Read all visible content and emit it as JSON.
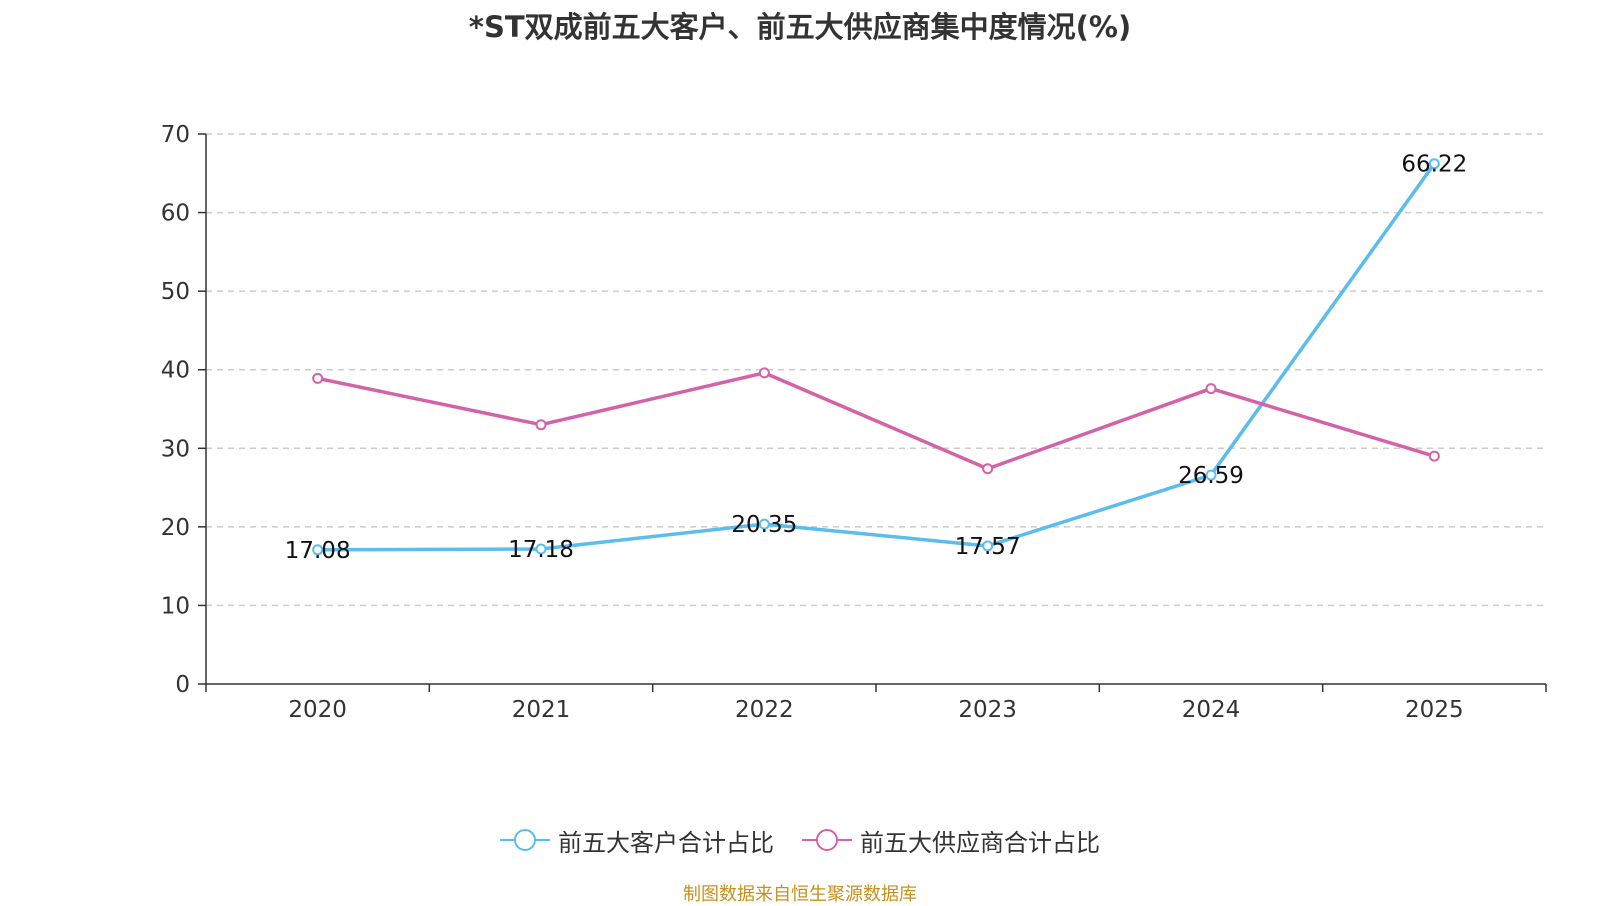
{
  "chart_data": {
    "type": "line",
    "title": "*ST双成前五大客户、前五大供应商集中度情况(%)",
    "categories": [
      "2020",
      "2021",
      "2022",
      "2023",
      "2024",
      "2025"
    ],
    "series": [
      {
        "name": "前五大客户合计占比",
        "color": "#5bbcee",
        "values": [
          17.08,
          17.18,
          20.35,
          17.57,
          26.59,
          66.22
        ],
        "labels": [
          "17.08",
          "17.18",
          "20.35",
          "17.57",
          "26.59",
          "66.22"
        ],
        "show_labels": true
      },
      {
        "name": "前五大供应商合计占比",
        "color": "#d462a8",
        "values": [
          38.9,
          33.0,
          39.6,
          27.4,
          37.6,
          29.0
        ],
        "show_labels": false
      }
    ],
    "ylim": [
      0,
      70
    ],
    "yticks": [
      0,
      10,
      20,
      30,
      40,
      50,
      60,
      70
    ],
    "xlabel": "",
    "ylabel": "",
    "grid": true,
    "legend_position": "bottom"
  },
  "source_note": "制图数据来自恒生聚源数据库"
}
